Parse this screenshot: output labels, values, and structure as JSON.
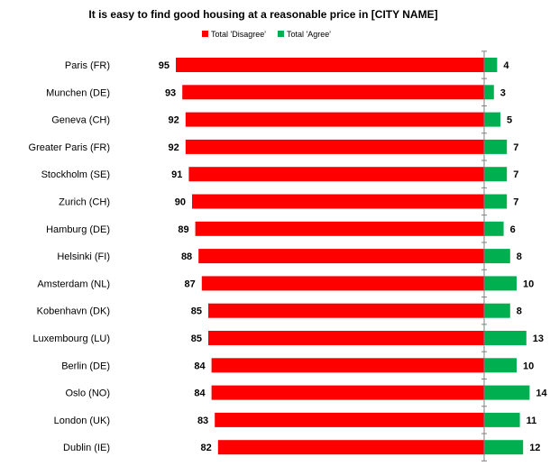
{
  "chart_data": {
    "type": "bar",
    "orientation": "horizontal",
    "diverging": true,
    "title": "It is easy to find good housing at a reasonable price in [CITY NAME]",
    "legend_placement": "top",
    "grid": false,
    "categories": [
      "Paris (FR)",
      "Munchen (DE)",
      "Geneva (CH)",
      "Greater Paris (FR)",
      "Stockholm (SE)",
      "Zurich (CH)",
      "Hamburg (DE)",
      "Helsinki (FI)",
      "Amsterdam (NL)",
      "Kobenhavn (DK)",
      "Luxembourg (LU)",
      "Berlin (DE)",
      "Oslo (NO)",
      "London (UK)",
      "Dublin (IE)"
    ],
    "series": [
      {
        "name": "Total 'Disagree'",
        "color": "#ff0000",
        "direction": "left",
        "values": [
          95,
          93,
          92,
          92,
          91,
          90,
          89,
          88,
          87,
          85,
          85,
          84,
          84,
          83,
          82
        ]
      },
      {
        "name": "Total 'Agree'",
        "color": "#00b050",
        "direction": "right",
        "values": [
          4,
          3,
          5,
          7,
          7,
          7,
          6,
          8,
          10,
          8,
          13,
          10,
          14,
          11,
          12
        ]
      }
    ]
  }
}
